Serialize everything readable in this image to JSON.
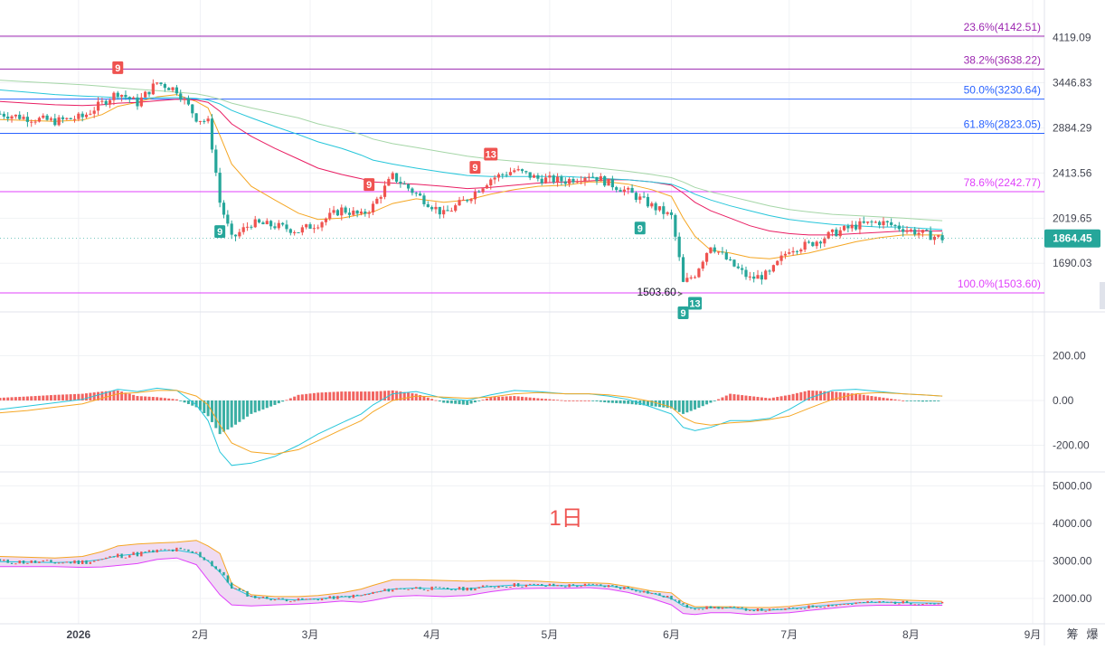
{
  "chart_data": {
    "type": "candlestick",
    "interval_label": "1日",
    "price_axis": {
      "scale": "log",
      "ticks": [
        4119.09,
        3446.83,
        2884.29,
        2413.56,
        2019.65,
        1690.03
      ],
      "tick_labels": [
        "4119.09",
        "3446.83",
        "2884.29",
        "2413.56",
        "2019.65",
        "1690.03"
      ],
      "current_price": 1864.45,
      "current_price_label": "1864.45",
      "current_price_color": "#26a69a"
    },
    "fibonacci_levels": [
      {
        "label": "23.6%(4142.51)",
        "value": 4142.51,
        "color": "#9c27b0"
      },
      {
        "label": "38.2%(3638.22)",
        "value": 3638.22,
        "color": "#9c27b0"
      },
      {
        "label": "50.0%(3230.64)",
        "value": 3230.64,
        "color": "#2962ff"
      },
      {
        "label": "61.8%(2823.05)",
        "value": 2823.05,
        "color": "#2962ff"
      },
      {
        "label": "78.6%(2242.77)",
        "value": 2242.77,
        "color": "#e040fb"
      },
      {
        "label": "100.0%(1503.60)",
        "value": 1503.6,
        "color": "#e040fb"
      }
    ],
    "low_marker": {
      "label": "1503.60",
      "value": 1503.6,
      "date": "2026-06-05"
    },
    "td_markers": [
      {
        "label": "9",
        "date": "2026-01-11",
        "side": "sell"
      },
      {
        "label": "9",
        "date": "2026-02-06",
        "side": "buy"
      },
      {
        "label": "9",
        "date": "2026-03-16",
        "side": "sell"
      },
      {
        "label": "9",
        "date": "2026-04-12",
        "side": "sell"
      },
      {
        "label": "13",
        "date": "2026-04-16",
        "side": "sell"
      },
      {
        "label": "9",
        "date": "2026-05-24",
        "side": "buy"
      },
      {
        "label": "9",
        "date": "2026-06-04",
        "side": "buy"
      },
      {
        "label": "13",
        "date": "2026-06-07",
        "side": "buy"
      }
    ],
    "x_axis": {
      "labels": [
        "2026",
        "2月",
        "3月",
        "4月",
        "5月",
        "6月",
        "7月",
        "8月",
        "9月"
      ],
      "dates": [
        "2026-01-01",
        "2026-02-01",
        "2026-03-01",
        "2026-04-01",
        "2026-05-01",
        "2026-06-01",
        "2026-07-01",
        "2026-08-01",
        "2026-09-01"
      ],
      "bold": [
        true,
        false,
        false,
        false,
        false,
        false,
        false,
        false,
        false
      ]
    },
    "price_series": {
      "date": [
        "2025-12-12",
        "2025-12-19",
        "2025-12-26",
        "2026-01-02",
        "2026-01-07",
        "2026-01-11",
        "2026-01-16",
        "2026-01-21",
        "2026-01-26",
        "2026-01-31",
        "2026-02-03",
        "2026-02-06",
        "2026-02-09",
        "2026-02-14",
        "2026-02-20",
        "2026-02-26",
        "2026-03-03",
        "2026-03-09",
        "2026-03-14",
        "2026-03-17",
        "2026-03-22",
        "2026-03-28",
        "2026-04-04",
        "2026-04-10",
        "2026-04-16",
        "2026-04-22",
        "2026-04-28",
        "2026-05-05",
        "2026-05-11",
        "2026-05-16",
        "2026-05-21",
        "2026-05-27",
        "2026-06-01",
        "2026-06-04",
        "2026-06-07",
        "2026-06-11",
        "2026-06-16",
        "2026-06-21",
        "2026-06-26",
        "2026-07-01",
        "2026-07-06",
        "2026-07-12",
        "2026-07-18",
        "2026-07-24",
        "2026-07-30",
        "2026-08-04",
        "2026-08-09"
      ],
      "close": [
        3050,
        3000,
        2960,
        3010,
        3180,
        3320,
        3180,
        3450,
        3350,
        3000,
        2950,
        2150,
        1860,
        1980,
        1960,
        1920,
        1980,
        2090,
        2040,
        2120,
        2380,
        2220,
        2050,
        2180,
        2360,
        2440,
        2360,
        2340,
        2400,
        2320,
        2240,
        2120,
        2030,
        1560,
        1620,
        1820,
        1690,
        1590,
        1620,
        1790,
        1820,
        1900,
        1960,
        1990,
        1940,
        1900,
        1864.45
      ]
    },
    "moving_averages": [
      {
        "color": "#f5a623",
        "values": [
          2980,
          2970,
          2960,
          2975,
          3040,
          3140,
          3190,
          3260,
          3290,
          3200,
          3120,
          2800,
          2500,
          2290,
          2170,
          2060,
          2010,
          2020,
          2050,
          2070,
          2140,
          2180,
          2150,
          2170,
          2220,
          2260,
          2290,
          2300,
          2330,
          2330,
          2310,
          2260,
          2200,
          2020,
          1880,
          1780,
          1760,
          1730,
          1720,
          1740,
          1760,
          1800,
          1840,
          1870,
          1890,
          1890,
          1890
        ]
      },
      {
        "color": "#e91e63",
        "values": [
          3200,
          3180,
          3160,
          3150,
          3160,
          3180,
          3190,
          3210,
          3230,
          3220,
          3190,
          3080,
          2930,
          2790,
          2660,
          2550,
          2460,
          2400,
          2360,
          2330,
          2320,
          2310,
          2290,
          2270,
          2280,
          2300,
          2320,
          2330,
          2340,
          2350,
          2350,
          2330,
          2300,
          2230,
          2150,
          2080,
          2020,
          1960,
          1920,
          1900,
          1890,
          1890,
          1900,
          1910,
          1920,
          1920,
          1920
        ]
      },
      {
        "color": "#26c6da",
        "values": [
          3350,
          3320,
          3290,
          3270,
          3260,
          3250,
          3240,
          3250,
          3250,
          3240,
          3220,
          3170,
          3090,
          3000,
          2900,
          2810,
          2730,
          2660,
          2590,
          2540,
          2500,
          2460,
          2420,
          2390,
          2380,
          2380,
          2380,
          2380,
          2370,
          2360,
          2350,
          2330,
          2310,
          2270,
          2220,
          2170,
          2120,
          2080,
          2040,
          2010,
          1990,
          1970,
          1960,
          1950,
          1950,
          1940,
          1930
        ]
      },
      {
        "color": "#a5d6a7",
        "values": [
          3480,
          3460,
          3440,
          3420,
          3400,
          3380,
          3360,
          3340,
          3320,
          3300,
          3270,
          3230,
          3180,
          3120,
          3060,
          3000,
          2930,
          2870,
          2810,
          2760,
          2710,
          2670,
          2620,
          2580,
          2550,
          2530,
          2510,
          2490,
          2470,
          2450,
          2430,
          2400,
          2370,
          2330,
          2280,
          2240,
          2200,
          2160,
          2120,
          2090,
          2070,
          2050,
          2040,
          2030,
          2020,
          2010,
          2000
        ]
      }
    ],
    "macd": {
      "axis_ticks": [
        200,
        0,
        -200
      ],
      "tick_labels": [
        "200.00",
        "0.00",
        "-200.00"
      ],
      "colors": {
        "positive": "#ef5350",
        "negative": "#26a69a",
        "dif": "#26c6da",
        "dea": "#f5a623"
      },
      "dif": [
        -40,
        -25,
        -10,
        5,
        30,
        50,
        40,
        55,
        45,
        -20,
        -90,
        -230,
        -290,
        -280,
        -250,
        -200,
        -150,
        -100,
        -60,
        -20,
        30,
        40,
        10,
        0,
        25,
        45,
        40,
        30,
        30,
        20,
        5,
        -30,
        -60,
        -120,
        -135,
        -120,
        -90,
        -90,
        -80,
        -40,
        10,
        45,
        50,
        40,
        30,
        25,
        20
      ],
      "dea": [
        -55,
        -45,
        -30,
        -15,
        10,
        30,
        35,
        45,
        45,
        20,
        -20,
        -110,
        -190,
        -230,
        -240,
        -220,
        -180,
        -130,
        -90,
        -50,
        0,
        20,
        15,
        10,
        15,
        30,
        35,
        30,
        30,
        25,
        15,
        -5,
        -30,
        -75,
        -100,
        -110,
        -100,
        -95,
        -85,
        -70,
        -35,
        5,
        30,
        35,
        30,
        25,
        20
      ],
      "hist": [
        12,
        18,
        25,
        30,
        40,
        45,
        20,
        15,
        5,
        -30,
        -70,
        -150,
        -120,
        -60,
        -20,
        25,
        35,
        40,
        40,
        40,
        45,
        30,
        -10,
        -20,
        15,
        20,
        10,
        0,
        0,
        -10,
        -15,
        -25,
        -35,
        -60,
        -40,
        -10,
        30,
        20,
        10,
        25,
        45,
        40,
        30,
        15,
        0,
        -5,
        -3
      ]
    },
    "volume_bands": {
      "axis_ticks": [
        5000,
        4000,
        3000,
        2000
      ],
      "tick_labels": [
        "5000.00",
        "4000.00",
        "3000.00",
        "2000.00"
      ],
      "upper": [
        3120,
        3100,
        3080,
        3120,
        3250,
        3400,
        3450,
        3480,
        3500,
        3550,
        3400,
        3200,
        2400,
        2100,
        2050,
        2050,
        2080,
        2150,
        2250,
        2350,
        2500,
        2500,
        2480,
        2460,
        2480,
        2480,
        2460,
        2420,
        2420,
        2400,
        2320,
        2200,
        2150,
        1900,
        1780,
        1780,
        1780,
        1760,
        1760,
        1790,
        1850,
        1920,
        1970,
        1990,
        1960,
        1940,
        1920
      ],
      "middle": [
        2980,
        2970,
        2960,
        2975,
        3040,
        3140,
        3190,
        3260,
        3290,
        3200,
        3000,
        2700,
        2300,
        2050,
        1980,
        1960,
        1990,
        2040,
        2080,
        2150,
        2250,
        2280,
        2250,
        2260,
        2320,
        2360,
        2350,
        2340,
        2350,
        2330,
        2270,
        2140,
        2000,
        1800,
        1740,
        1760,
        1750,
        1700,
        1690,
        1720,
        1780,
        1830,
        1880,
        1900,
        1890,
        1880,
        1870
      ],
      "lower": [
        2850,
        2850,
        2850,
        2830,
        2840,
        2880,
        2930,
        3040,
        3080,
        2900,
        2500,
        2100,
        1830,
        1800,
        1830,
        1850,
        1880,
        1930,
        1900,
        1950,
        2050,
        2080,
        2050,
        2080,
        2180,
        2260,
        2270,
        2270,
        2290,
        2250,
        2160,
        2000,
        1830,
        1600,
        1570,
        1620,
        1620,
        1570,
        1600,
        1620,
        1680,
        1740,
        1800,
        1820,
        1820,
        1820,
        1820
      ]
    },
    "footer_buttons": [
      "筹",
      "爆"
    ]
  }
}
